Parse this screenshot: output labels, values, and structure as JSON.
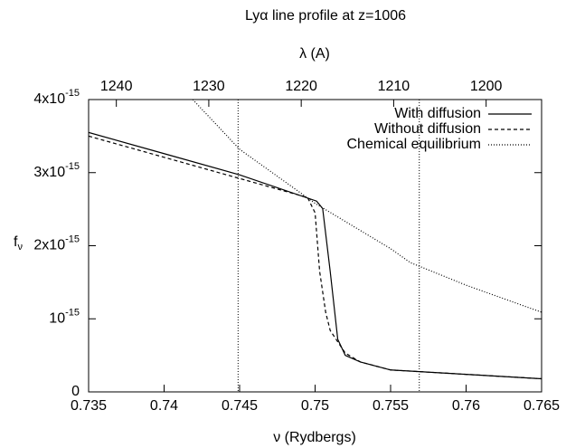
{
  "chart_data": {
    "type": "line",
    "title": "Lyα line profile at z=1006",
    "xlabel": "ν (Rydbergs)",
    "ylabel": "f",
    "ylabel_sub": "ν",
    "x2label": "λ (A)",
    "xlim": [
      0.735,
      0.765
    ],
    "xticks": [
      0.735,
      0.74,
      0.745,
      0.75,
      0.755,
      0.76,
      0.765
    ],
    "x2lim": [
      1243,
      1194
    ],
    "x2ticks": [
      1240,
      1230,
      1220,
      1210,
      1200
    ],
    "ylim": [
      0,
      4e-15
    ],
    "yticks": [
      0,
      {
        "value": 1e-15,
        "label": "10",
        "exp": "-15"
      },
      {
        "value": 2e-15,
        "label": "2x10",
        "exp": "-15"
      },
      {
        "value": 3e-15,
        "label": "3x10",
        "exp": "-15"
      },
      {
        "value": 4e-15,
        "label": "4x10",
        "exp": "-15"
      }
    ],
    "vlines": [
      0.7449,
      0.7569
    ],
    "legend": "upper right",
    "series": [
      {
        "name": "With diffusion",
        "color": "#000000",
        "dash": "none",
        "x": [
          0.735,
          0.74,
          0.745,
          0.7501,
          0.7505,
          0.751,
          0.7515,
          0.752,
          0.753,
          0.755,
          0.76,
          0.765
        ],
        "values": [
          3.55e-15,
          3.26e-15,
          2.97e-15,
          2.61e-15,
          2.51e-15,
          1.65e-15,
          7.2e-16,
          5e-16,
          4.1e-16,
          3e-16,
          2.4e-16,
          1.8e-16
        ]
      },
      {
        "name": "Without diffusion",
        "color": "#000000",
        "dash": "4,3",
        "x": [
          0.735,
          0.74,
          0.745,
          0.7495,
          0.75,
          0.7503,
          0.7507,
          0.751,
          0.752,
          0.753,
          0.755,
          0.76,
          0.765
        ],
        "values": [
          3.5e-15,
          3.21e-15,
          2.92e-15,
          2.66e-15,
          2.45e-15,
          1.65e-15,
          1.09e-15,
          8.4e-16,
          5.3e-16,
          4.1e-16,
          3e-16,
          2.4e-16,
          1.8e-16
        ]
      },
      {
        "name": "Chemical equilibrium",
        "color": "#000000",
        "dash": "1,2",
        "x": [
          0.7419,
          0.745,
          0.75,
          0.755,
          0.7563,
          0.76,
          0.765
        ],
        "values": [
          4e-15,
          3.32e-15,
          2.58e-15,
          1.96e-15,
          1.77e-15,
          1.46e-15,
          1.09e-15
        ]
      }
    ]
  }
}
